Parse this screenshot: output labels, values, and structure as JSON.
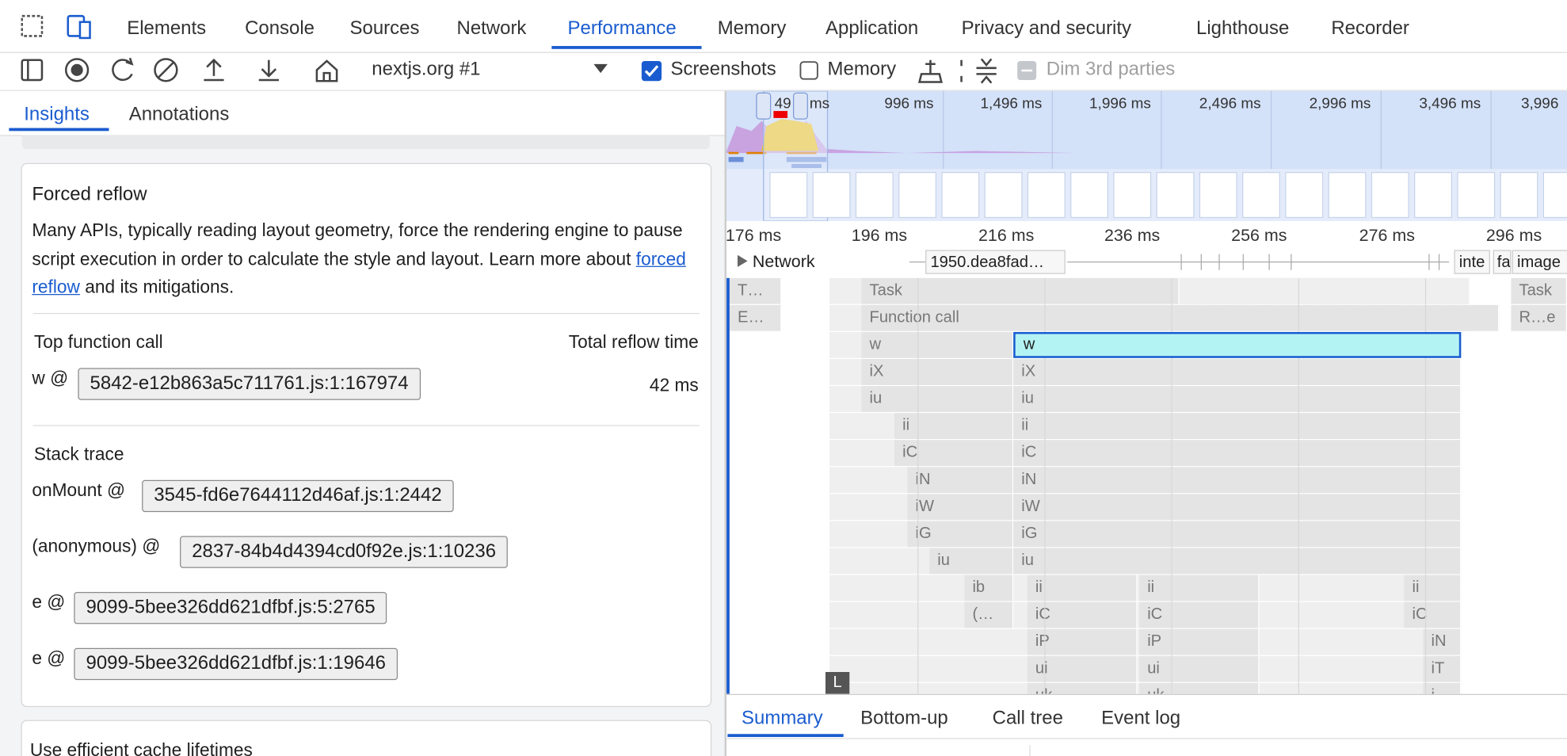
{
  "tabs": [
    "Elements",
    "Console",
    "Sources",
    "Network",
    "Performance",
    "Memory",
    "Application",
    "Privacy and security",
    "Lighthouse",
    "Recorder"
  ],
  "toolbar": {
    "recording": "nextjs.org #1",
    "screenshots": "Screenshots",
    "memory": "Memory",
    "dim": "Dim 3rd parties"
  },
  "sidebar": {
    "tabs": [
      "Insights",
      "Annotations"
    ],
    "insight": {
      "title": "Forced reflow",
      "description": "Many APIs, typically reading layout geometry, force the rendering engine to pause script execution in order to calculate the style and layout. Learn more about ",
      "link": "forced reflow",
      "description_end": " and its mitigations.",
      "col1": "Top function call",
      "col2": "Total reflow time",
      "top_fn": "w @",
      "top_src": "5842-e12b863a5c711761.js:1:167974",
      "top_time": "42 ms",
      "stack_title": "Stack trace",
      "stack": [
        {
          "fn": "onMount @",
          "src": "3545-fd6e7644112d46af.js:1:2442"
        },
        {
          "fn": "(anonymous) @",
          "src": "2837-84b4d4394cd0f92e.js:1:10236"
        },
        {
          "fn": "e @",
          "src": "9099-5bee326dd621dfbf.js:5:2765"
        },
        {
          "fn": "e @",
          "src": "9099-5bee326dd621dfbf.js:1:19646"
        }
      ]
    },
    "next_insight": "Use efficient cache lifetimes"
  },
  "overview": {
    "marker": "49",
    "labels": [
      "ms",
      "996 ms",
      "1,496 ms",
      "1,996 ms",
      "2,496 ms",
      "2,996 ms",
      "3,496 ms",
      "3,996"
    ]
  },
  "ruler": [
    "176 ms",
    "196 ms",
    "216 ms",
    "236 ms",
    "256 ms",
    "276 ms",
    "296 ms"
  ],
  "network": {
    "label": "Network",
    "requests": [
      "1950.dea8fad…",
      "inte",
      "fa",
      "image"
    ]
  },
  "flame": [
    "T…",
    "E…",
    "Task",
    "Function call",
    "w",
    "w",
    "iX",
    "iu",
    "ii",
    "iC",
    "iN",
    "iW",
    "iG",
    "iu",
    "ib",
    "(…",
    "iX",
    "iu",
    "ii",
    "iC",
    "iN",
    "iW",
    "iG",
    "iu",
    "ii",
    "iC",
    "iP",
    "ui",
    "uk",
    "ii",
    "iC",
    "iP",
    "ui",
    "uk",
    "ii",
    "iC",
    "iN",
    "iT",
    "i",
    "Task",
    "R…e"
  ],
  "flame_marker": "L",
  "bottom_tabs": [
    "Summary",
    "Bottom-up",
    "Call tree",
    "Event log"
  ]
}
